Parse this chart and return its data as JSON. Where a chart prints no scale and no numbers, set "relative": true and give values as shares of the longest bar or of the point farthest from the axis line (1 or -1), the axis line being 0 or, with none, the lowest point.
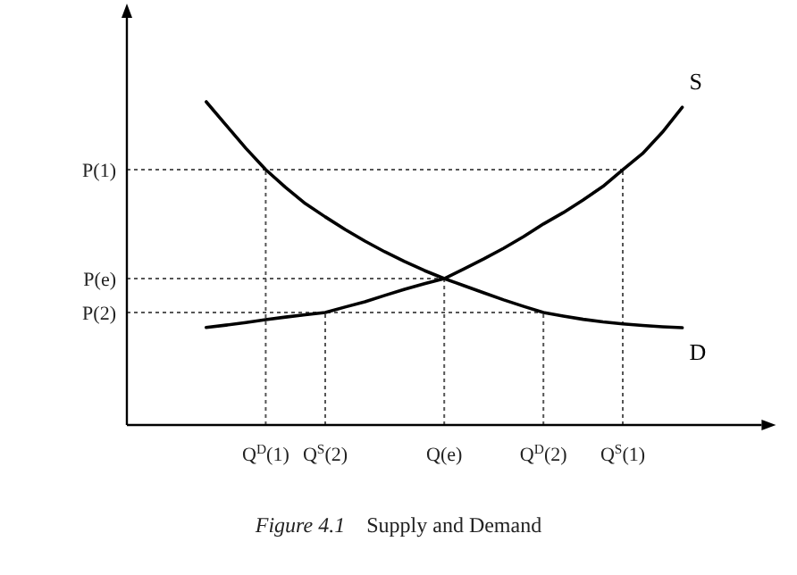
{
  "chart_data": {
    "type": "line",
    "title": "Figure 4.1",
    "subtitle": "Supply and Demand",
    "relative": true,
    "categories": [
      null,
      null,
      null,
      null,
      null,
      null,
      null,
      "Q$^{D}$(1)",
      null,
      null,
      "Q$^{S}$(2)",
      null,
      null,
      null,
      null,
      null,
      "Q(e)",
      null,
      null,
      null,
      null,
      "Q$^{D}$(2)",
      null,
      null,
      null,
      "Q$^{S}$(1)",
      null,
      null,
      null,
      null,
      null,
      null,
      null
    ],
    "series": [
      {
        "name": "S",
        "color": "#000000",
        "values": [
          null,
          null,
          null,
          null,
          0.302,
          0.309,
          0.317,
          0.326,
          0.334,
          0.341,
          0.348,
          0.365,
          0.381,
          0.401,
          0.42,
          0.437,
          0.453,
          0.483,
          0.514,
          0.547,
          0.583,
          0.622,
          0.657,
          0.696,
          0.738,
          0.79,
          0.84,
          0.906,
          0.983,
          null,
          null,
          null,
          null
        ]
      },
      {
        "name": "D",
        "color": "#000000",
        "values": [
          null,
          null,
          null,
          null,
          1,
          0.928,
          0.856,
          0.79,
          0.735,
          0.685,
          0.644,
          0.605,
          0.569,
          0.536,
          0.506,
          0.478,
          0.453,
          0.431,
          0.409,
          0.387,
          0.367,
          0.348,
          0.337,
          0.327,
          0.319,
          0.313,
          0.308,
          0.304,
          0.301,
          null,
          null,
          null,
          null
        ]
      }
    ],
    "ref_lines": [
      {
        "axis": "y",
        "value": 0.79,
        "label": "P(1)",
        "color": "#555555",
        "line_style": "dotted"
      },
      {
        "axis": "y",
        "value": 0.453,
        "label": "P(e)",
        "color": "#555555",
        "line_style": "dotted"
      },
      {
        "axis": "y",
        "value": 0.348,
        "label": "P(2)",
        "color": "#555555",
        "line_style": "dotted"
      },
      {
        "axis": "x",
        "value": "Q$^{D}$(1)",
        "color": "#555555",
        "line_style": "dotted"
      },
      {
        "axis": "x",
        "value": "Q$^{S}$(2)",
        "color": "#555555",
        "line_style": "dotted"
      },
      {
        "axis": "x",
        "value": "Q(e)",
        "color": "#555555",
        "line_style": "dotted"
      },
      {
        "axis": "x",
        "value": "Q$^{D}$(2)",
        "color": "#555555",
        "line_style": "dotted"
      },
      {
        "axis": "x",
        "value": "Q$^{S}$(1)",
        "color": "#555555",
        "line_style": "dotted"
      }
    ]
  }
}
